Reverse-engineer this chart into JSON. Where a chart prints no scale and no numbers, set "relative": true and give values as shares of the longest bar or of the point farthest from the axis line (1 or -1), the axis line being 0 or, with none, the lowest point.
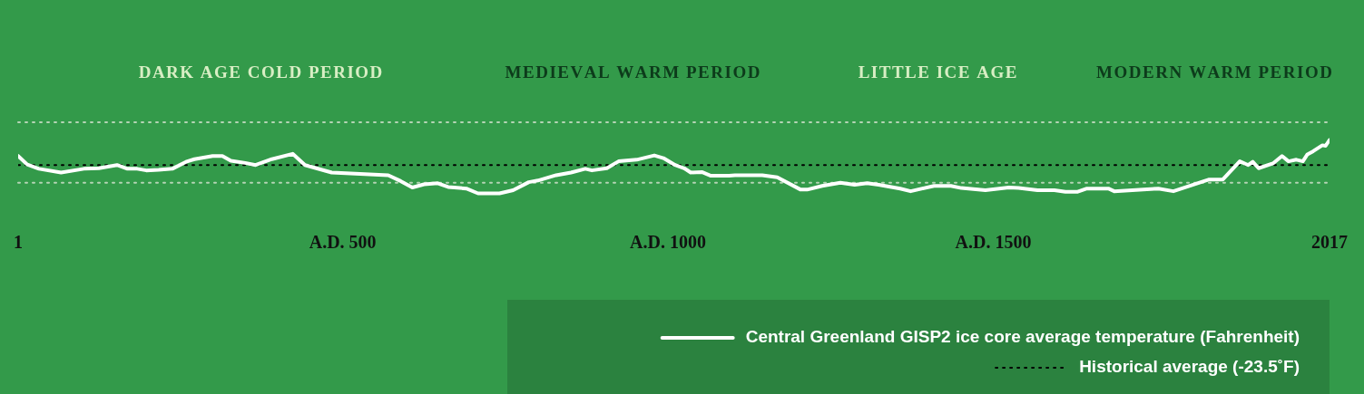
{
  "chart_data": {
    "type": "line",
    "relative": true,
    "annotations": [
      "DARK AGE COLD PERIOD",
      "MEDIEVAL WARM PERIOD",
      "LITTLE ICE AGE",
      "MODERN WARM PERIOD"
    ],
    "xlim": [
      1,
      2017
    ],
    "xticks": [
      1,
      {
        "value": 500,
        "label": "A.D. 500"
      },
      {
        "value": 1000,
        "label": "A.D. 1000"
      },
      {
        "value": 1500,
        "label": "A.D. 1500"
      },
      2017
    ],
    "legend": "bottom right",
    "grid": false,
    "ref_lines": [
      {
        "axis": "y",
        "value": 1.33,
        "color": "#b5d4b5",
        "line_style": "dotted"
      },
      {
        "axis": "y",
        "value": 0.2,
        "color": "#b5d4b5",
        "line_style": "dotted"
      }
    ],
    "series": [
      {
        "name": "Central Greenland GISP2 ice core average temperature (Fahrenheit)",
        "color": "#ffffff",
        "line_style": "solid",
        "x": [
          1,
          15,
          33,
          67,
          102,
          125,
          153,
          169,
          184,
          198,
          217,
          238,
          259,
          272,
          300,
          315,
          328,
          350,
          366,
          391,
          423,
          442,
          483,
          570,
          589,
          607,
          625,
          646,
          662,
          690,
          708,
          741,
          762,
          786,
          800,
          828,
          851,
          873,
          883,
          906,
          924,
          952,
          979,
          993,
          1011,
          1025,
          1035,
          1052,
          1066,
          1094,
          1103,
          1145,
          1168,
          1204,
          1214,
          1237,
          1265,
          1287,
          1306,
          1324,
          1357,
          1373,
          1409,
          1435,
          1451,
          1488,
          1524,
          1539,
          1568,
          1594,
          1611,
          1630,
          1644,
          1677,
          1686,
          1754,
          1777,
          1832,
          1853,
          1879,
          1892,
          1899,
          1908,
          1930,
          1944,
          1954,
          1966,
          1976,
          1983,
          1992,
          2006,
          2011,
          2017
        ],
        "values": [
          0.7,
          0.54,
          0.46,
          0.39,
          0.46,
          0.47,
          0.53,
          0.46,
          0.46,
          0.43,
          0.44,
          0.46,
          0.59,
          0.64,
          0.7,
          0.7,
          0.61,
          0.57,
          0.53,
          0.64,
          0.74,
          0.53,
          0.39,
          0.34,
          0.23,
          0.11,
          0.17,
          0.19,
          0.12,
          0.09,
          0,
          0,
          0.06,
          0.21,
          0.24,
          0.34,
          0.39,
          0.46,
          0.43,
          0.47,
          0.6,
          0.63,
          0.71,
          0.66,
          0.53,
          0.47,
          0.39,
          0.4,
          0.33,
          0.33,
          0.34,
          0.34,
          0.3,
          0.07,
          0.07,
          0.14,
          0.2,
          0.16,
          0.19,
          0.16,
          0.09,
          0.04,
          0.14,
          0.14,
          0.1,
          0.06,
          0.11,
          0.1,
          0.06,
          0.06,
          0.03,
          0.03,
          0.09,
          0.09,
          0.04,
          0.09,
          0.04,
          0.26,
          0.26,
          0.6,
          0.53,
          0.59,
          0.47,
          0.56,
          0.7,
          0.6,
          0.63,
          0.6,
          0.73,
          0.79,
          0.9,
          0.89,
          1
        ]
      },
      {
        "name": "Historical average (-23.5˚F)",
        "color": "#000000",
        "line_style": "dotted",
        "x": [
          1,
          2017
        ],
        "values": [
          0.53,
          0.53
        ]
      }
    ]
  }
}
